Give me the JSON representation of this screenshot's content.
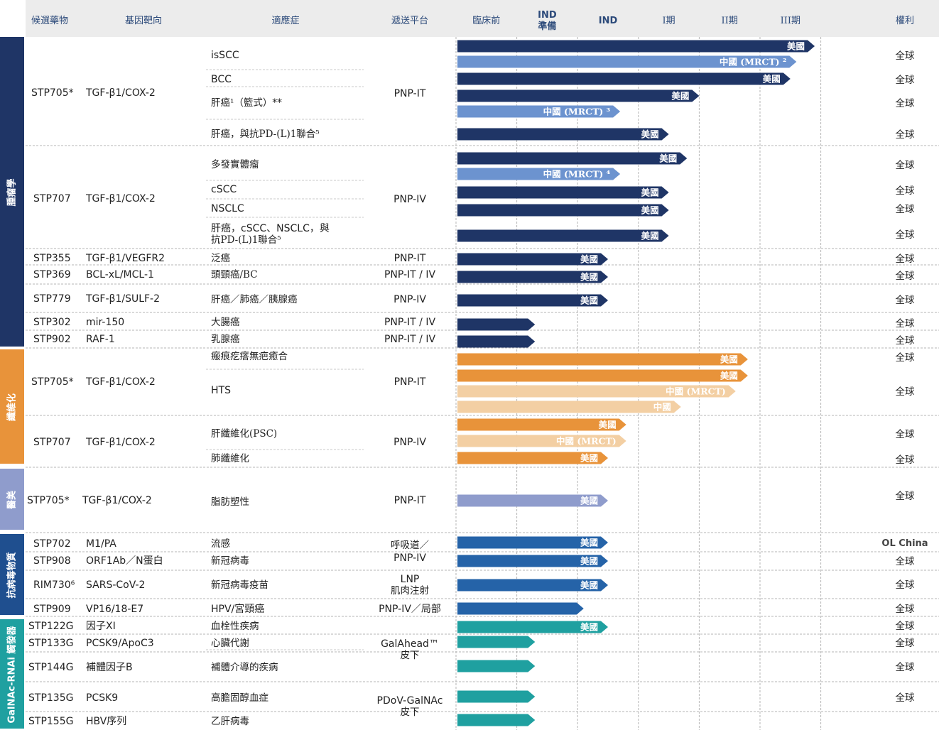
{
  "headers": {
    "candidate": "候選藥物",
    "target": "基因靶向",
    "indication": "適應症",
    "platform": "遞送平台",
    "stages": [
      "臨床前",
      "IND\n準備",
      "IND",
      "I期",
      "II期",
      "III期"
    ],
    "rights": "權利"
  },
  "categories": [
    {
      "label": "腫瘤學",
      "color": "#1f3566"
    },
    {
      "label": "纖維化",
      "color": "#e8933a"
    },
    {
      "label": "醫美",
      "color": "#8f9ccc"
    },
    {
      "label": "抗病毒物質",
      "color": "#1f4f8f"
    },
    {
      "label": "GalNAc-RNAi 觸發器",
      "color": "#1fa0a0"
    }
  ],
  "drug_rows": [
    {
      "drug": "STP705*",
      "target": "TGF-β1/COX-2"
    },
    {
      "drug": "STP707",
      "target": "TGF-β1/COX-2"
    },
    {
      "drug": "STP355",
      "target": "TGF-β1/VEGFR2"
    },
    {
      "drug": "STP369",
      "target": "BCL-xL/MCL-1"
    },
    {
      "drug": "STP779",
      "target": "TGF-β1/SULF-2"
    },
    {
      "drug": "STP302",
      "target": "mir-150"
    },
    {
      "drug": "STP902",
      "target": "RAF-1"
    },
    {
      "drug": "STP705*",
      "target": "TGF-β1/COX-2"
    },
    {
      "drug": "STP707",
      "target": "TGF-β1/COX-2"
    },
    {
      "drug": "STP705*",
      "target": "TGF-β1/COX-2"
    },
    {
      "drug": "STP702",
      "target": "M1/PA"
    },
    {
      "drug": "STP908",
      "target": "ORF1Ab／N蛋白"
    },
    {
      "drug": "RIM730⁶",
      "target": "SARS-CoV-2"
    },
    {
      "drug": "STP909",
      "target": "VP16/18-E7"
    },
    {
      "drug": "STP122G",
      "target": "因子XI"
    },
    {
      "drug": "STP133G",
      "target": "PCSK9/ApoC3"
    },
    {
      "drug": "STP144G",
      "target": "補體因子B"
    },
    {
      "drug": "STP135G",
      "target": "PCSK9"
    },
    {
      "drug": "STP155G",
      "target": "HBV序列"
    }
  ],
  "indications": [
    "isSCC",
    "BCC",
    "肝癌¹（籃式）**",
    "肝癌，與抗PD-(L)1聯合⁵",
    "多發實體瘤",
    "cSCC",
    "NSCLC",
    "肝癌，cSCC、NSCLC，與",
    "抗PD-(L)1聯合⁵",
    "泛癌",
    "頭頸癌/BC",
    "肝癌／肺癌／胰腺癌",
    "大腸癌",
    "乳腺癌",
    "瘢痕疙瘩無疤癒合",
    "HTS",
    "肝纖維化(PSC)",
    "肺纖維化",
    "脂肪塑性",
    "流感",
    "新冠病毒",
    "新冠病毒疫苗",
    "HPV/宮頸癌",
    "血栓性疾病",
    "心臟代謝",
    "補體介導的疾病",
    "高膽固醇血症",
    "乙肝病毒"
  ],
  "platforms": [
    "PNP-IT",
    "PNP-IV",
    "PNP-IT",
    "PNP-IT / IV",
    "PNP-IV",
    "PNP-IT / IV",
    "PNP-IT / IV",
    "PNP-IT",
    "PNP-IV",
    "PNP-IT",
    "呼吸道／",
    "PNP-IV",
    "LNP",
    "肌肉注射",
    "PNP-IV／局部",
    "GalAhead™",
    "皮下",
    "PDoV-GalNAc",
    "皮下"
  ],
  "rights": [
    "全球",
    "全球",
    "全球",
    "全球",
    "全球",
    "全球",
    "全球",
    "全球",
    "全球",
    "全球",
    "全球",
    "全球",
    "全球",
    "全球",
    "全球",
    "全球",
    "全球",
    "全球",
    "OL China",
    "全球",
    "全球",
    "全球",
    "全球",
    "全球",
    "全球",
    "全球"
  ],
  "chart_data": {
    "type": "bar",
    "stages": [
      "臨床前",
      "IND準備",
      "IND",
      "I期",
      "II期",
      "III期"
    ],
    "bars": [
      {
        "label": "美國",
        "end": 5.9,
        "color": "#1f3566"
      },
      {
        "label": "中國 (MRCT) ²",
        "end": 5.6,
        "color": "#6c93cf"
      },
      {
        "label": "美國",
        "end": 5.5,
        "color": "#1f3566"
      },
      {
        "label": "美國",
        "end": 4.0,
        "color": "#1f3566"
      },
      {
        "label": "中國 (MRCT) ³",
        "end": 2.7,
        "color": "#6c93cf"
      },
      {
        "label": "美國",
        "end": 3.5,
        "color": "#1f3566"
      },
      {
        "label": "美國",
        "end": 3.8,
        "color": "#1f3566"
      },
      {
        "label": "中國 (MRCT) ⁴",
        "end": 2.7,
        "color": "#6c93cf"
      },
      {
        "label": "美國",
        "end": 3.5,
        "color": "#1f3566"
      },
      {
        "label": "美國",
        "end": 3.5,
        "color": "#1f3566"
      },
      {
        "label": "美國",
        "end": 3.5,
        "color": "#1f3566"
      },
      {
        "label": "美國",
        "end": 2.5,
        "color": "#1f3566"
      },
      {
        "label": "美國",
        "end": 2.5,
        "color": "#1f3566"
      },
      {
        "label": "美國",
        "end": 2.5,
        "color": "#1f3566"
      },
      {
        "label": "",
        "end": 1.3,
        "color": "#1f3566"
      },
      {
        "label": "",
        "end": 1.3,
        "color": "#1f3566"
      },
      {
        "label": "美國",
        "end": 4.8,
        "color": "#e8933a"
      },
      {
        "label": "美國",
        "end": 4.8,
        "color": "#e8933a"
      },
      {
        "label": "中國 (MRCT)",
        "end": 4.6,
        "color": "#f3cfa3"
      },
      {
        "label": "中國",
        "end": 3.7,
        "color": "#f3cfa3"
      },
      {
        "label": "美國",
        "end": 2.8,
        "color": "#e8933a"
      },
      {
        "label": "中國 (MRCT)",
        "end": 2.8,
        "color": "#f3cfa3"
      },
      {
        "label": "美國",
        "end": 2.5,
        "color": "#e8933a"
      },
      {
        "label": "美國",
        "end": 2.5,
        "color": "#8f9ccc"
      },
      {
        "label": "美國",
        "end": 2.5,
        "color": "#2563a8"
      },
      {
        "label": "美國",
        "end": 2.5,
        "color": "#2563a8"
      },
      {
        "label": "美國",
        "end": 2.5,
        "color": "#2563a8"
      },
      {
        "label": "",
        "end": 2.1,
        "color": "#2563a8"
      },
      {
        "label": "美國",
        "end": 2.5,
        "color": "#1fa0a0"
      },
      {
        "label": "",
        "end": 1.3,
        "color": "#1fa0a0"
      },
      {
        "label": "",
        "end": 1.3,
        "color": "#1fa0a0"
      },
      {
        "label": "",
        "end": 1.3,
        "color": "#1fa0a0"
      },
      {
        "label": "",
        "end": 1.3,
        "color": "#1fa0a0"
      }
    ]
  }
}
